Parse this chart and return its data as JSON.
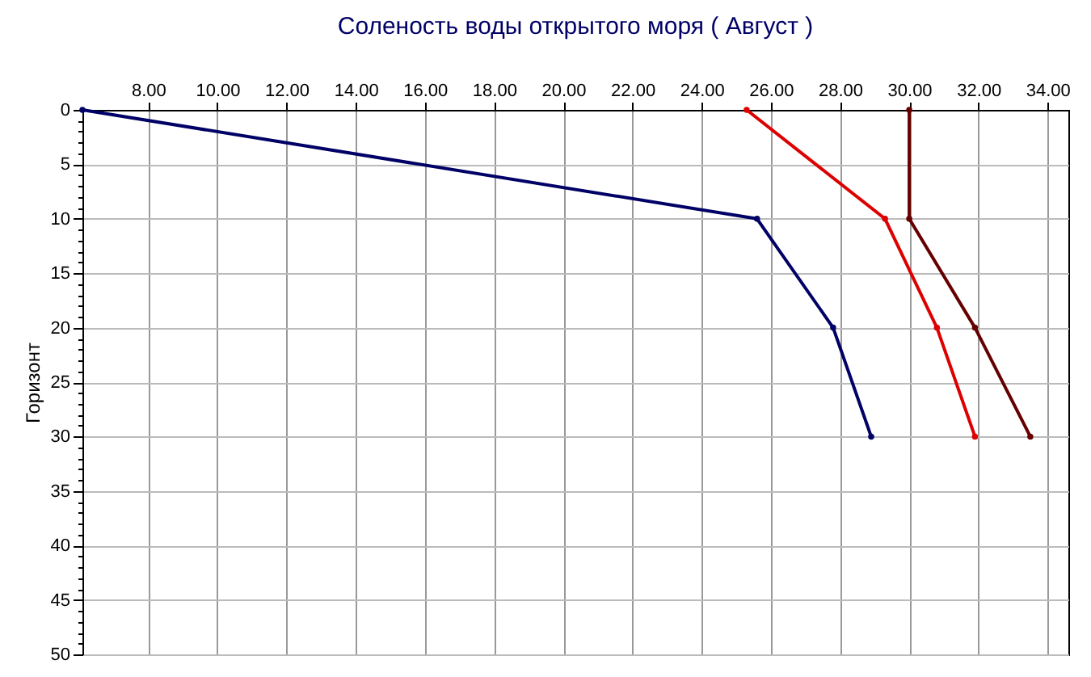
{
  "chart_data": {
    "type": "line",
    "title": "Соленость воды открытого моря    ( Август )",
    "ylabel": "Горизонт",
    "marker": "circle",
    "line_style": "solid",
    "grid": true,
    "legend": false,
    "series": [
      {
        "color": "#000066",
        "x": [
          6.1,
          25.6,
          27.8,
          28.9
        ],
        "values": [
          0,
          10,
          20,
          30
        ]
      },
      {
        "color": "#dd0000",
        "x": [
          25.3,
          29.3,
          30.8,
          31.9
        ],
        "values": [
          0,
          10,
          20,
          30
        ]
      },
      {
        "color": "#660000",
        "x": [
          30.0,
          30.0,
          31.9,
          33.5
        ],
        "values": [
          0,
          10,
          20,
          30
        ]
      }
    ],
    "xlim": [
      6.1,
      34.6
    ],
    "xticks": [
      {
        "value": 8,
        "label": "8.00"
      },
      {
        "value": 10,
        "label": "10.00"
      },
      {
        "value": 12,
        "label": "12.00"
      },
      {
        "value": 14,
        "label": "14.00"
      },
      {
        "value": 16,
        "label": "16.00"
      },
      {
        "value": 18,
        "label": "18.00"
      },
      {
        "value": 20,
        "label": "20.00"
      },
      {
        "value": 22,
        "label": "22.00"
      },
      {
        "value": 24,
        "label": "24.00"
      },
      {
        "value": 26,
        "label": "26.00"
      },
      {
        "value": 28,
        "label": "28.00"
      },
      {
        "value": 30,
        "label": "30.00"
      },
      {
        "value": 32,
        "label": "32.00"
      },
      {
        "value": 34,
        "label": "34.00"
      }
    ],
    "ylim": [
      50,
      0
    ],
    "yticks": [
      0,
      {
        "value": 1,
        "label": null
      },
      {
        "value": 2,
        "label": null
      },
      {
        "value": 3,
        "label": null
      },
      {
        "value": 4,
        "label": null
      },
      5,
      {
        "value": 6,
        "label": null
      },
      {
        "value": 7,
        "label": null
      },
      {
        "value": 8,
        "label": null
      },
      {
        "value": 9,
        "label": null
      },
      10,
      {
        "value": 11,
        "label": null
      },
      {
        "value": 12,
        "label": null
      },
      {
        "value": 13,
        "label": null
      },
      {
        "value": 14,
        "label": null
      },
      15,
      {
        "value": 16,
        "label": null
      },
      {
        "value": 17,
        "label": null
      },
      {
        "value": 18,
        "label": null
      },
      {
        "value": 19,
        "label": null
      },
      20,
      {
        "value": 21,
        "label": null
      },
      {
        "value": 22,
        "label": null
      },
      {
        "value": 23,
        "label": null
      },
      {
        "value": 24,
        "label": null
      },
      25,
      {
        "value": 26,
        "label": null
      },
      {
        "value": 27,
        "label": null
      },
      {
        "value": 28,
        "label": null
      },
      {
        "value": 29,
        "label": null
      },
      30,
      {
        "value": 31,
        "label": null
      },
      {
        "value": 32,
        "label": null
      },
      {
        "value": 33,
        "label": null
      },
      {
        "value": 34,
        "label": null
      },
      35,
      {
        "value": 36,
        "label": null
      },
      {
        "value": 37,
        "label": null
      },
      {
        "value": 38,
        "label": null
      },
      {
        "value": 39,
        "label": null
      },
      40,
      {
        "value": 41,
        "label": null
      },
      {
        "value": 42,
        "label": null
      },
      {
        "value": 43,
        "label": null
      },
      {
        "value": 44,
        "label": null
      },
      45,
      {
        "value": 46,
        "label": null
      },
      {
        "value": 47,
        "label": null
      },
      {
        "value": 48,
        "label": null
      },
      {
        "value": 49,
        "label": null
      },
      50
    ]
  }
}
